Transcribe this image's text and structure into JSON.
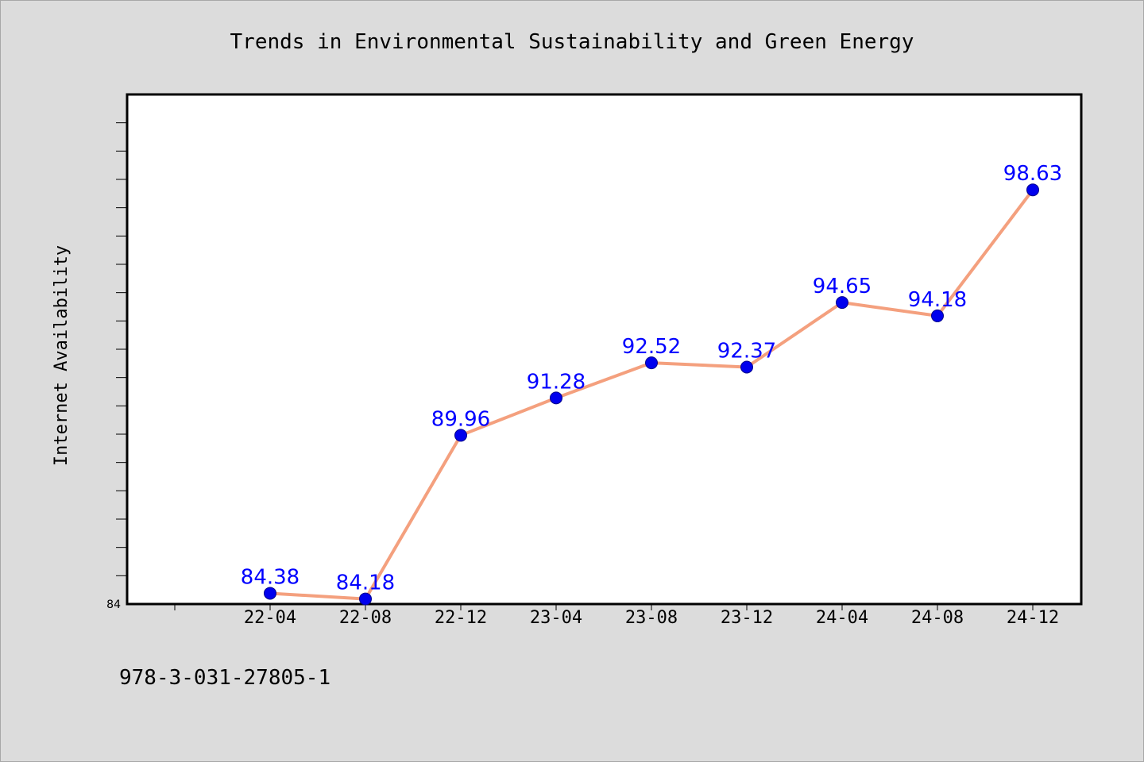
{
  "chart_data": {
    "type": "line",
    "title": "Trends in Environmental Sustainability and Green Energy",
    "xlabel": "",
    "ylabel": "Internet Availability",
    "categories": [
      "22-04",
      "22-08",
      "22-12",
      "23-04",
      "23-08",
      "23-12",
      "24-04",
      "24-08",
      "24-12"
    ],
    "series": [
      {
        "values": [
          84.38,
          84.18,
          89.96,
          91.28,
          92.52,
          92.37,
          94.65,
          94.18,
          98.63
        ],
        "line_color": "#f4a07e",
        "marker_color": "#0000ee",
        "label_color": "#0000ff"
      }
    ],
    "ylim": [
      84,
      102
    ],
    "y_tick_labels": [
      "84"
    ],
    "grid": false,
    "legend": "none"
  },
  "footer": {
    "text": "978-3-031-27805-1"
  },
  "colors": {
    "background": "#dcdcdc",
    "plot_background": "#ffffff",
    "axis": "#000000"
  }
}
